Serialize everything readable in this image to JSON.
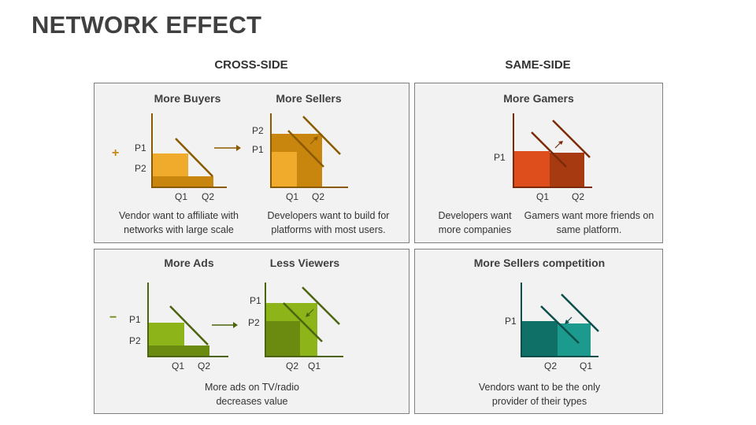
{
  "title": "NETWORK EFFECT",
  "columns": {
    "cross": "CROSS-SIDE",
    "same": "SAME-SIDE"
  },
  "panels": {
    "top_left": {
      "sign": "+",
      "left": {
        "label": "More Buyers",
        "y_ticks": [
          "P1",
          "P2"
        ],
        "x_ticks": [
          "Q1",
          "Q2"
        ],
        "caption": "Vendor want to affiliate with networks with large scale"
      },
      "right": {
        "label": "More Sellers",
        "y_ticks": [
          "P2",
          "P1"
        ],
        "x_ticks": [
          "Q1",
          "Q2"
        ],
        "caption": "Developers want to build for platforms with most users."
      }
    },
    "top_right": {
      "label": "More Gamers",
      "y_ticks": [
        "P1"
      ],
      "x_ticks": [
        "Q1",
        "Q2"
      ],
      "caption_left": "Developers want more companies",
      "caption_right": "Gamers want more friends on same platform."
    },
    "bottom_left": {
      "sign": "−",
      "left": {
        "label": "More Ads",
        "y_ticks": [
          "P1",
          "P2"
        ],
        "x_ticks": [
          "Q1",
          "Q2"
        ]
      },
      "right": {
        "label": "Less Viewers",
        "y_ticks": [
          "P1",
          "P2"
        ],
        "x_ticks": [
          "Q2",
          "Q1"
        ]
      },
      "caption": "More ads on TV/radio decreases value"
    },
    "bottom_right": {
      "label": "More Sellers competition",
      "y_ticks": [
        "P1"
      ],
      "x_ticks": [
        "Q2",
        "Q1"
      ],
      "caption": "Vendors want to be the only provider of their types"
    }
  },
  "colors": {
    "orange_light": "#f0aa2c",
    "orange_dark": "#c8860f",
    "orange_axis": "#8a5a00",
    "red_light": "#dd4e1c",
    "red_dark": "#a83a12",
    "red_axis": "#7a2a08",
    "green_light": "#8db51a",
    "green_dark": "#6a8a10",
    "green_axis": "#4c6410",
    "teal_light": "#1c9a8e",
    "teal_dark": "#0f7068",
    "teal_axis": "#0c4e4a"
  }
}
